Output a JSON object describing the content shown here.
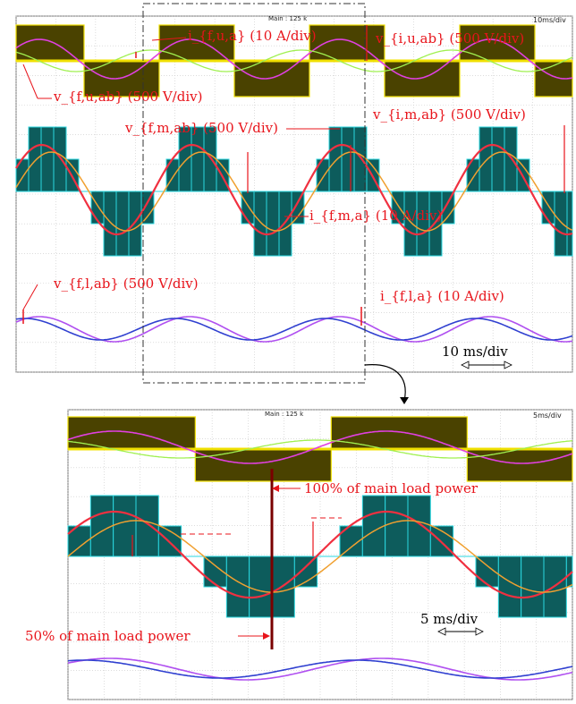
{
  "figure": {
    "top_scope": {
      "header": "Main : 125 k",
      "timebase_label": "10ms/div",
      "timebase_annotation": "10 ms/div",
      "labels": {
        "i_f_u_a": "i_{f,u,a} (10 A/div)",
        "v_i_u_ab": "v_{i,u,ab} (500 V/div)",
        "v_f_u_ab": "v_{f,u,ab} (500 V/div)",
        "v_f_m_ab": "v_{f,m,ab} (500 V/div)",
        "v_i_m_ab": "v_{i,m,ab} (500 V/div)",
        "i_f_m_a": "i_{f,m,a} (10 A/div)",
        "v_f_l_ab": "v_{f,l,ab} (500 V/div)",
        "i_f_l_a": "i_{f,l,a} (10 A/div)"
      }
    },
    "bottom_scope": {
      "header": "Main : 125 k",
      "timebase_label": "5ms/div",
      "timebase_annotation": "5 ms/div",
      "load_step_high": "100% of main load power",
      "load_step_low": "50% of main load power"
    },
    "colors": {
      "grid": "#c8c8c8",
      "upper_pwm": "#4a4200",
      "upper_pwm_edge": "#f0e000",
      "middle_pwm": "#0d5c5c",
      "middle_pwm_edge": "#2ad7e0",
      "magenta": "#e040e0",
      "green": "#a0f050",
      "red": "#f03040",
      "orange": "#f0a030",
      "violet": "#b050f0",
      "blue": "#3040d0",
      "annotation": "#e8141b"
    }
  }
}
